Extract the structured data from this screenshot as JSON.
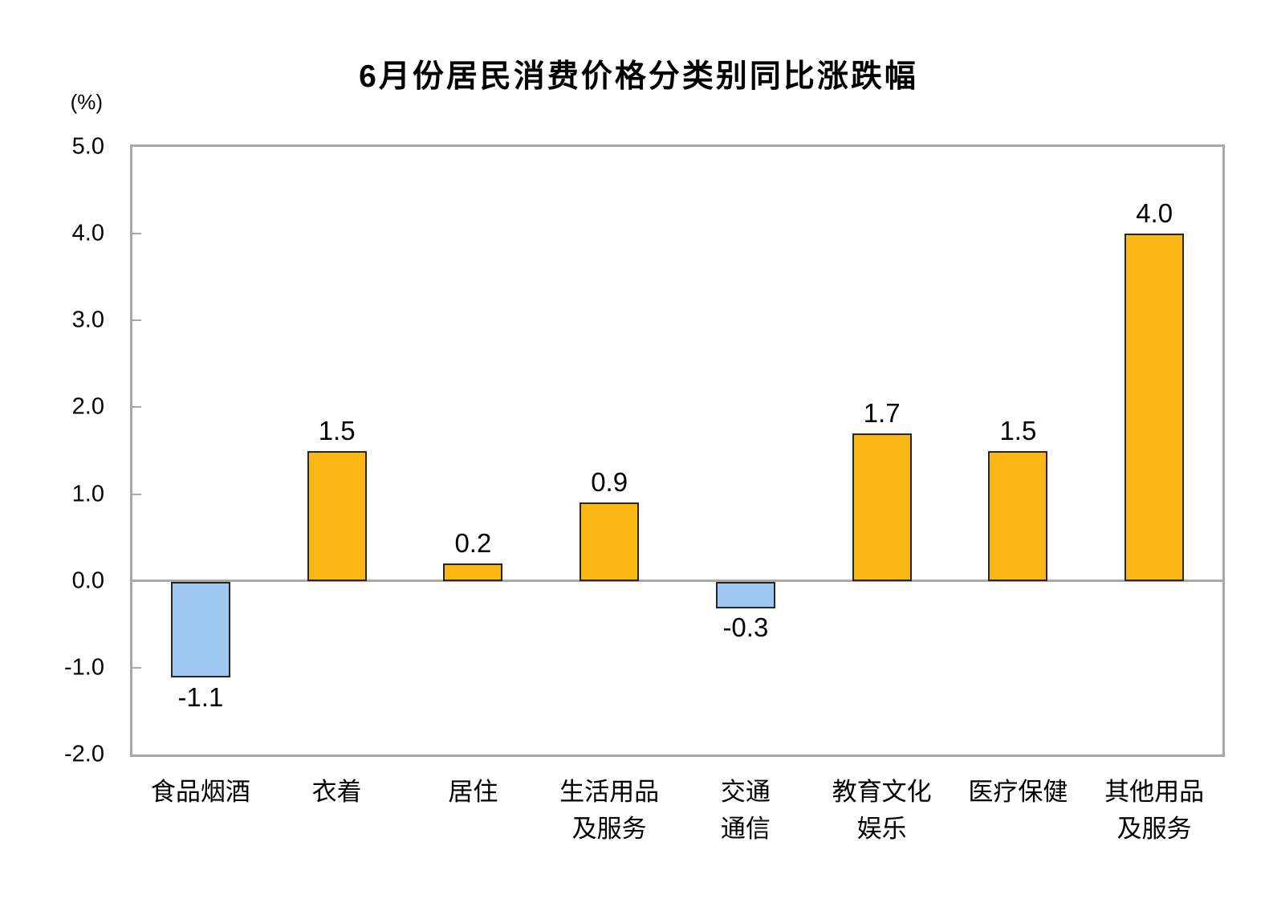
{
  "chart_data": {
    "type": "bar",
    "title": "6月份居民消费价格分类别同比涨跌幅",
    "unit_label": "(%)",
    "categories": [
      "食品烟酒",
      "衣着",
      "居住",
      "生活用品\n及服务",
      "交通\n通信",
      "教育文化\n娱乐",
      "医疗保健",
      "其他用品\n及服务"
    ],
    "values": [
      -1.1,
      1.5,
      0.2,
      0.9,
      -0.3,
      1.7,
      1.5,
      4.0
    ],
    "value_labels": [
      "-1.1",
      "1.5",
      "0.2",
      "0.9",
      "-0.3",
      "1.7",
      "1.5",
      "4.0"
    ],
    "ylim": [
      -2.0,
      5.0
    ],
    "ytick_interval": 1.0,
    "yticks": [
      "5.0",
      "4.0",
      "3.0",
      "2.0",
      "1.0",
      "0.0",
      "-1.0",
      "-2.0"
    ],
    "grid": false,
    "legend": "none",
    "value_labels_shown": true,
    "colors": {
      "positive_bar": "#FBB713",
      "negative_bar": "#9EC8F2",
      "bar_border": "#262626",
      "axis": "#A8A8A8",
      "text": "#000000"
    }
  }
}
